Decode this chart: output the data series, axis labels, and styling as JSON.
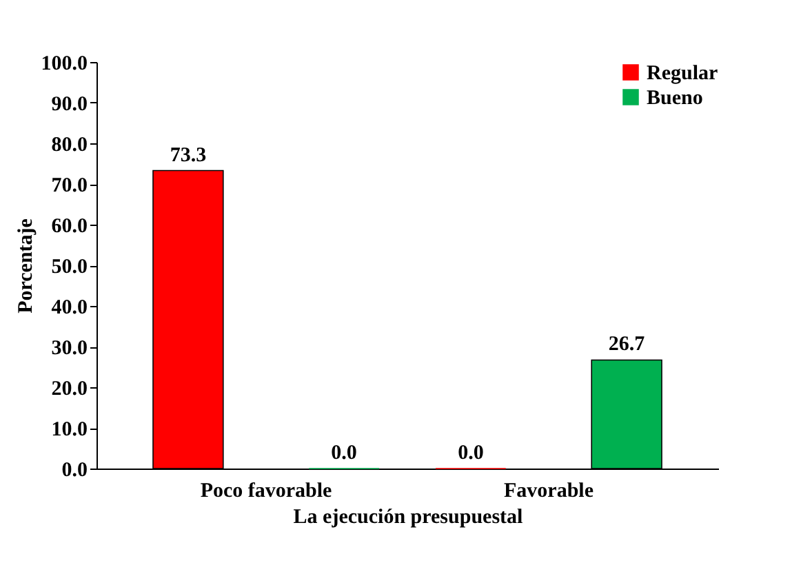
{
  "chart_data": {
    "type": "bar",
    "xlabel": "La ejecución presupuestal",
    "ylabel": "Porcentaje",
    "categories": [
      "Poco favorable",
      "Favorable"
    ],
    "series": [
      {
        "name": "Regular",
        "color": "#ff0000",
        "values": [
          73.3,
          0.0
        ],
        "value_labels": [
          "73.3",
          "0.0"
        ]
      },
      {
        "name": "Bueno",
        "color": "#00b050",
        "values": [
          0.0,
          26.7
        ],
        "value_labels": [
          "0.0",
          "26.7"
        ]
      }
    ],
    "ylim": [
      0,
      100
    ],
    "yticks": [
      {
        "value": 0,
        "label": "0.0"
      },
      {
        "value": 10,
        "label": "10.0"
      },
      {
        "value": 20,
        "label": "20.0"
      },
      {
        "value": 30,
        "label": "30.0"
      },
      {
        "value": 40,
        "label": "40.0"
      },
      {
        "value": 50,
        "label": "50.0"
      },
      {
        "value": 60,
        "label": "60.0"
      },
      {
        "value": 70,
        "label": "70.0"
      },
      {
        "value": 80,
        "label": "80.0"
      },
      {
        "value": 90,
        "label": "90.0"
      },
      {
        "value": 100,
        "label": "100.0"
      }
    ],
    "grid": false,
    "legend": "top right"
  }
}
